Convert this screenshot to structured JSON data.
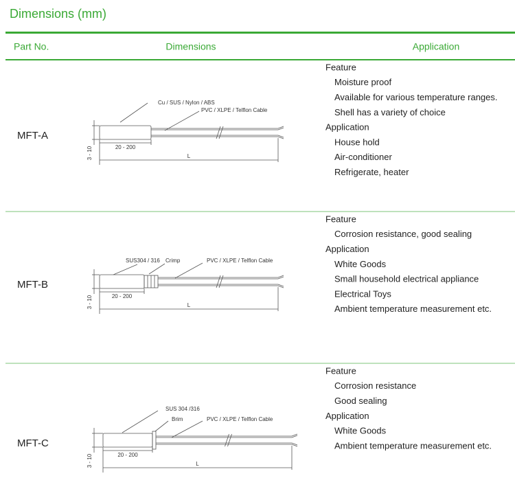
{
  "header": {
    "title": "Dimensions (mm)"
  },
  "table": {
    "columns": [
      "Part No.",
      "Dimensions",
      "Application"
    ],
    "rows": [
      {
        "part": "MFT-A",
        "diagram": {
          "material": "Cu / SUS / Nylon / ABS",
          "cable": "PVC / XLPE / Telflon Cable",
          "length": "20 - 200",
          "diameter": "3 - 10",
          "total": "L"
        },
        "application": [
          {
            "heading": "Feature",
            "items": [
              "Moisture proof",
              "Available for various temperature ranges.",
              "Shell has a variety of choice"
            ]
          },
          {
            "heading": "Application",
            "items": [
              "House hold",
              "Air-conditioner",
              "Refrigerate, heater"
            ]
          }
        ]
      },
      {
        "part": "MFT-B",
        "diagram": {
          "material": "SUS304 / 316",
          "joint": "Crimp",
          "cable": "PVC / XLPE / Telflon Cable",
          "length": "20 - 200",
          "diameter": "3 - 10",
          "total": "L"
        },
        "application": [
          {
            "heading": "Feature",
            "items": [
              "Corrosion resistance, good sealing"
            ]
          },
          {
            "heading": "Application",
            "items": [
              "White Goods",
              "Small household electrical appliance",
              "Electrical Toys",
              "Ambient temperature measurement etc."
            ]
          }
        ]
      },
      {
        "part": "MFT-C",
        "diagram": {
          "material": "SUS 304 /316",
          "joint": "Brim",
          "cable": "PVC / XLPE / Telflon Cable",
          "length": "20 - 200",
          "diameter": "3 - 10",
          "total": "L"
        },
        "application": [
          {
            "heading": "Feature",
            "items": [
              "Corrosion resistance",
              "Good sealing"
            ]
          },
          {
            "heading": "Application",
            "items": [
              "White Goods",
              "Ambient temperature measurement etc."
            ]
          }
        ]
      }
    ]
  }
}
